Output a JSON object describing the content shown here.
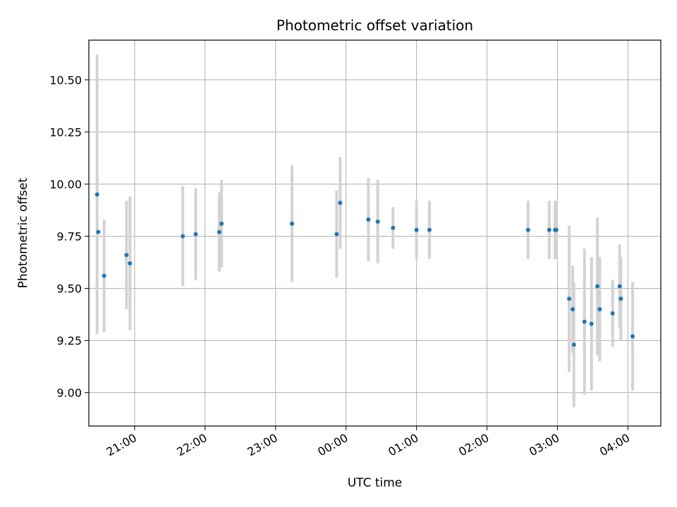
{
  "chart_data": {
    "type": "scatter",
    "title": "Photometric offset variation",
    "xlabel": "UTC time",
    "ylabel": "Photometric offset",
    "x_axis_type": "time",
    "x_ticks": [
      "21:00",
      "22:00",
      "23:00",
      "00:00",
      "01:00",
      "02:00",
      "03:00",
      "04:00"
    ],
    "y_ticks": [
      "9.00",
      "9.25",
      "9.50",
      "9.75",
      "10.00",
      "10.25",
      "10.50"
    ],
    "xlim": [
      "20:21",
      "04:28"
    ],
    "ylim": [
      8.84,
      10.69
    ],
    "grid": true,
    "colors": {
      "points": "#1f77b4",
      "errorbars": "#d3d3d3",
      "grid": "#b0b0b0"
    },
    "points": [
      {
        "x": "20:28",
        "y": 9.95,
        "err": 0.67
      },
      {
        "x": "20:29",
        "y": 9.77,
        "err": 0.0
      },
      {
        "x": "20:34",
        "y": 9.56,
        "err": 0.27
      },
      {
        "x": "20:53",
        "y": 9.66,
        "err": 0.26
      },
      {
        "x": "20:56",
        "y": 9.62,
        "err": 0.32
      },
      {
        "x": "21:41",
        "y": 9.75,
        "err": 0.24
      },
      {
        "x": "21:52",
        "y": 9.76,
        "err": 0.22
      },
      {
        "x": "22:12",
        "y": 9.77,
        "err": 0.19
      },
      {
        "x": "22:14",
        "y": 9.81,
        "err": 0.21
      },
      {
        "x": "23:14",
        "y": 9.81,
        "err": 0.28
      },
      {
        "x": "23:52",
        "y": 9.76,
        "err": 0.21
      },
      {
        "x": "23:55",
        "y": 9.91,
        "err": 0.22
      },
      {
        "x": "00:19",
        "y": 9.83,
        "err": 0.2
      },
      {
        "x": "00:27",
        "y": 9.82,
        "err": 0.2
      },
      {
        "x": "00:40",
        "y": 9.79,
        "err": 0.1
      },
      {
        "x": "01:00",
        "y": 9.78,
        "err": 0.14
      },
      {
        "x": "01:11",
        "y": 9.78,
        "err": 0.14
      },
      {
        "x": "02:35",
        "y": 9.78,
        "err": 0.14
      },
      {
        "x": "02:53",
        "y": 9.78,
        "err": 0.14
      },
      {
        "x": "02:58",
        "y": 9.78,
        "err": 0.14
      },
      {
        "x": "02:59",
        "y": 9.78,
        "err": 0.14
      },
      {
        "x": "03:10",
        "y": 9.45,
        "err": 0.35
      },
      {
        "x": "03:13",
        "y": 9.4,
        "err": 0.21
      },
      {
        "x": "03:14",
        "y": 9.23,
        "err": 0.3
      },
      {
        "x": "03:23",
        "y": 9.34,
        "err": 0.35
      },
      {
        "x": "03:29",
        "y": 9.33,
        "err": 0.32
      },
      {
        "x": "03:34",
        "y": 9.51,
        "err": 0.33
      },
      {
        "x": "03:36",
        "y": 9.4,
        "err": 0.25
      },
      {
        "x": "03:47",
        "y": 9.38,
        "err": 0.16
      },
      {
        "x": "03:53",
        "y": 9.51,
        "err": 0.2
      },
      {
        "x": "03:54",
        "y": 9.45,
        "err": 0.2
      },
      {
        "x": "04:04",
        "y": 9.27,
        "err": 0.26
      }
    ]
  }
}
